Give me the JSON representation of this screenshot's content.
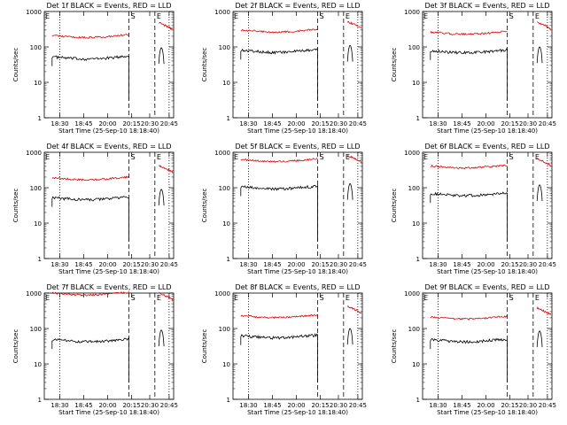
{
  "page": {
    "background": "#ffffff",
    "series_colors": {
      "events": "#000000",
      "lld": "#e00000"
    },
    "shared": {
      "ylabel": "Counts/sec",
      "xlabel": "Start Time (25-Sep-10 18:18:40)",
      "title_suffix": " BLACK = Events, RED = LLD",
      "x_tick_labels": [
        "18:30",
        "18:45",
        "20:00",
        "20:15",
        "20:30",
        "20:45"
      ],
      "y_tick_labels": [
        "1",
        "10",
        "100",
        "1000"
      ],
      "markers": {
        "S": "S",
        "E": "E"
      }
    }
  },
  "chart_data": [
    {
      "type": "line",
      "title": "Det 1f BLACK = Events, RED = LLD",
      "yscale": "log",
      "ylim": [
        1,
        1000
      ],
      "series": [
        {
          "name": "Events",
          "level": 52,
          "mid_level": 95
        },
        {
          "name": "LLD",
          "level": 210,
          "mid_level": 480
        }
      ]
    },
    {
      "type": "line",
      "title": "Det 2f BLACK = Events, RED = LLD",
      "yscale": "log",
      "ylim": [
        1,
        1000
      ],
      "series": [
        {
          "name": "Events",
          "level": 80,
          "mid_level": 110
        },
        {
          "name": "LLD",
          "level": 300,
          "mid_level": 520
        }
      ]
    },
    {
      "type": "line",
      "title": "Det 3f BLACK = Events, RED = LLD",
      "yscale": "log",
      "ylim": [
        1,
        1000
      ],
      "series": [
        {
          "name": "Events",
          "level": 78,
          "mid_level": 100
        },
        {
          "name": "LLD",
          "level": 260,
          "mid_level": 500
        }
      ]
    },
    {
      "type": "line",
      "title": "Det 4f BLACK = Events, RED = LLD",
      "yscale": "log",
      "ylim": [
        1,
        1000
      ],
      "series": [
        {
          "name": "Events",
          "level": 52,
          "mid_level": 90
        },
        {
          "name": "LLD",
          "level": 190,
          "mid_level": 420
        }
      ]
    },
    {
      "type": "line",
      "title": "Det 5f BLACK = Events, RED = LLD",
      "yscale": "log",
      "ylim": [
        1,
        1000
      ],
      "series": [
        {
          "name": "Events",
          "level": 105,
          "mid_level": 130
        },
        {
          "name": "LLD",
          "level": 620,
          "mid_level": 800
        }
      ]
    },
    {
      "type": "line",
      "title": "Det 6f BLACK = Events, RED = LLD",
      "yscale": "log",
      "ylim": [
        1,
        1000
      ],
      "series": [
        {
          "name": "Events",
          "level": 68,
          "mid_level": 120
        },
        {
          "name": "LLD",
          "level": 410,
          "mid_level": 650
        }
      ]
    },
    {
      "type": "line",
      "title": "Det 7f BLACK = Events, RED = LLD",
      "yscale": "log",
      "ylim": [
        1,
        1000
      ],
      "series": [
        {
          "name": "Events",
          "level": 48,
          "mid_level": 90
        },
        {
          "name": "LLD",
          "level": 1000,
          "mid_level": 1000
        }
      ]
    },
    {
      "type": "line",
      "title": "Det 8f BLACK = Events, RED = LLD",
      "yscale": "log",
      "ylim": [
        1,
        1000
      ],
      "series": [
        {
          "name": "Events",
          "level": 62,
          "mid_level": 100
        },
        {
          "name": "LLD",
          "level": 230,
          "mid_level": 420
        }
      ]
    },
    {
      "type": "line",
      "title": "Det 9f BLACK = Events, RED = LLD",
      "yscale": "log",
      "ylim": [
        1,
        1000
      ],
      "series": [
        {
          "name": "Events",
          "level": 48,
          "mid_level": 85
        },
        {
          "name": "LLD",
          "level": 210,
          "mid_level": 380
        }
      ]
    }
  ]
}
